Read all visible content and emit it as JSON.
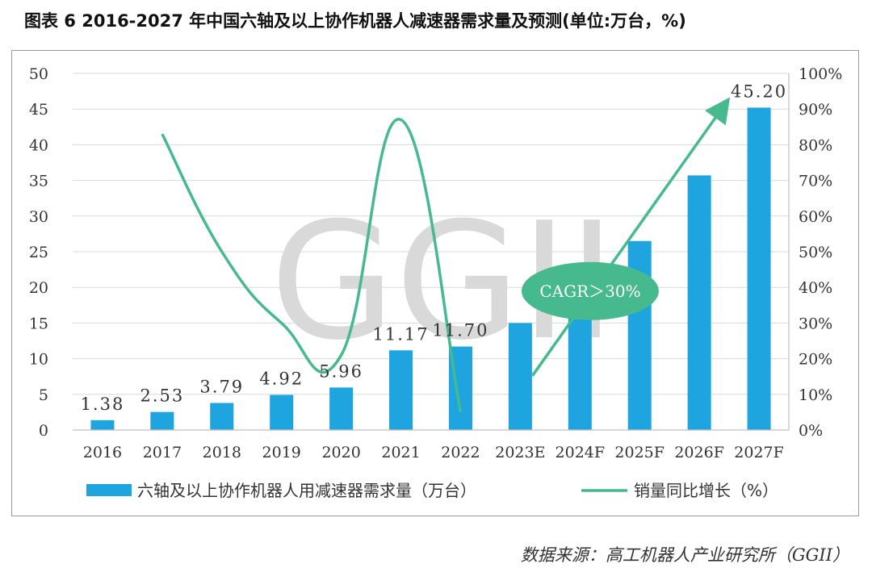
{
  "title": "图表 6  2016-2027 年中国六轴及以上协作机器人减速器需求量及预测(单位:万台，%)",
  "source": "数据来源：高工机器人产业研究所（GGII）",
  "colors": {
    "bar": "#1ea5df",
    "line": "#46b98f",
    "grid": "#d9d9d9",
    "axis": "#bfbfbf"
  },
  "chart_data": {
    "type": "bar",
    "categories": [
      "2016",
      "2017",
      "2018",
      "2019",
      "2020",
      "2021",
      "2022",
      "2023E",
      "2024F",
      "2025F",
      "2026F",
      "2027F"
    ],
    "series": [
      {
        "name": "六轴及以上协作机器人用减速器需求量（万台）",
        "type": "bar",
        "axis": "left",
        "values": [
          1.38,
          2.53,
          3.79,
          4.92,
          5.96,
          11.17,
          11.7,
          15.0,
          19.8,
          26.5,
          35.7,
          45.2
        ],
        "labels": [
          "1.38",
          "2.53",
          "3.79",
          "4.92",
          "5.96",
          "11.17",
          "11.70",
          "",
          "",
          "",
          "",
          "45.20"
        ]
      },
      {
        "name": "销量同比增长（%）",
        "type": "line",
        "axis": "right",
        "x": [
          "2017",
          "2018",
          "2019",
          "2020",
          "2021",
          "2022"
        ],
        "values": [
          83,
          50,
          30,
          21,
          87,
          5
        ]
      }
    ],
    "ylim_left": [
      0,
      50
    ],
    "yticks_left": [
      "0",
      "5",
      "10",
      "15",
      "20",
      "25",
      "30",
      "35",
      "40",
      "45",
      "50"
    ],
    "ylim_right": [
      0,
      100
    ],
    "yticks_right": [
      "0%",
      "10%",
      "20%",
      "30%",
      "40%",
      "50%",
      "60%",
      "70%",
      "80%",
      "90%",
      "100%"
    ],
    "annotation": {
      "text": "CAGR＞30%",
      "arrow_from": [
        "2023E",
        7.6
      ],
      "arrow_to": [
        "2027F",
        45.7
      ]
    },
    "watermark": "GGII",
    "grid": true,
    "legend": "bottom"
  }
}
